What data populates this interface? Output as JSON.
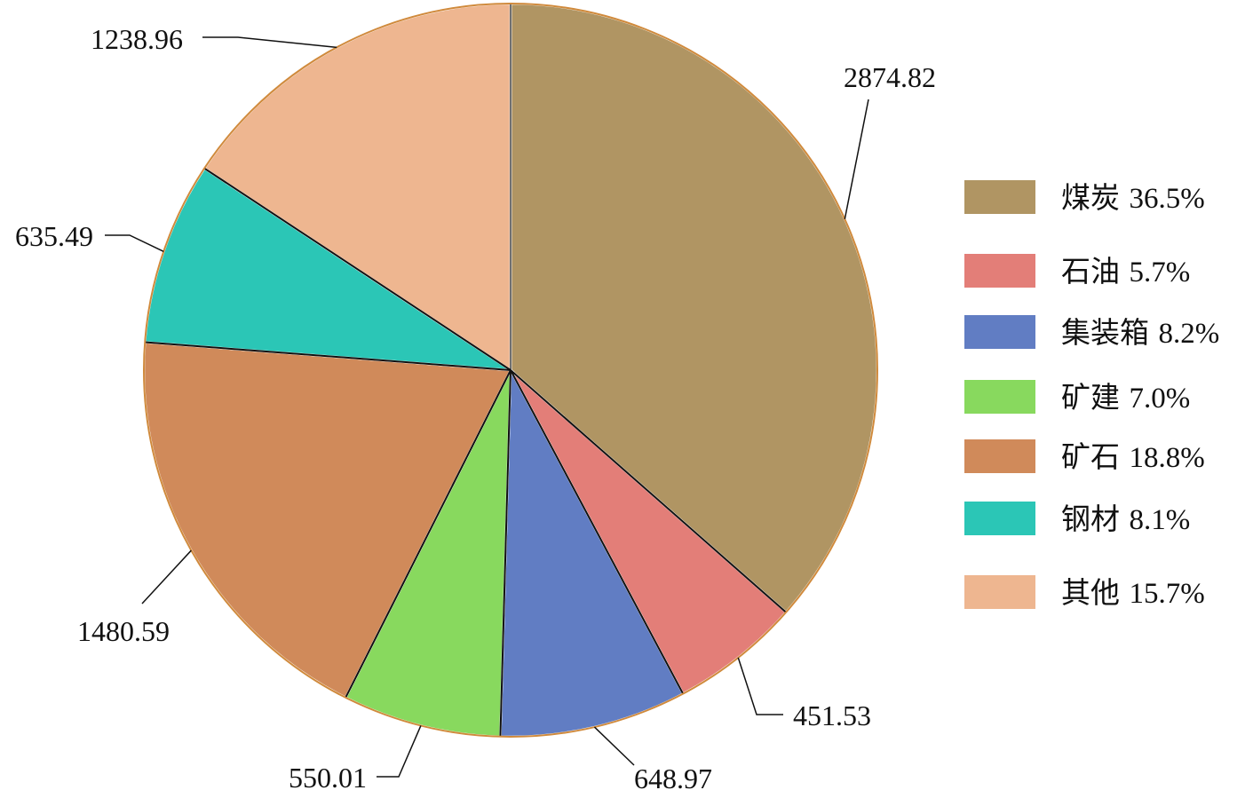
{
  "chart_data": {
    "type": "pie",
    "title": "",
    "start_angle_deg": 0,
    "direction": "clockwise",
    "legend_position": "right",
    "slices": [
      {
        "name": "煤炭",
        "value": 2874.82,
        "label": "2874.82",
        "percent_label": "36.5%",
        "color": "#b09563"
      },
      {
        "name": "石油",
        "value": 451.53,
        "label": "451.53",
        "percent_label": "5.7%",
        "color": "#e37e78"
      },
      {
        "name": "集装箱",
        "value": 648.97,
        "label": "648.97",
        "percent_label": "8.2%",
        "color": "#617dc3"
      },
      {
        "name": "矿建",
        "value": 550.01,
        "label": "550.01",
        "percent_label": "7.0%",
        "color": "#88d95e"
      },
      {
        "name": "矿石",
        "value": 1480.59,
        "label": "1480.59",
        "percent_label": "18.8%",
        "color": "#d08a5a"
      },
      {
        "name": "钢材",
        "value": 635.49,
        "label": "635.49",
        "percent_label": "8.1%",
        "color": "#2bc6b6"
      },
      {
        "name": "其他",
        "value": 1238.96,
        "label": "1238.96",
        "percent_label": "15.7%",
        "color": "#eeb690"
      }
    ]
  }
}
